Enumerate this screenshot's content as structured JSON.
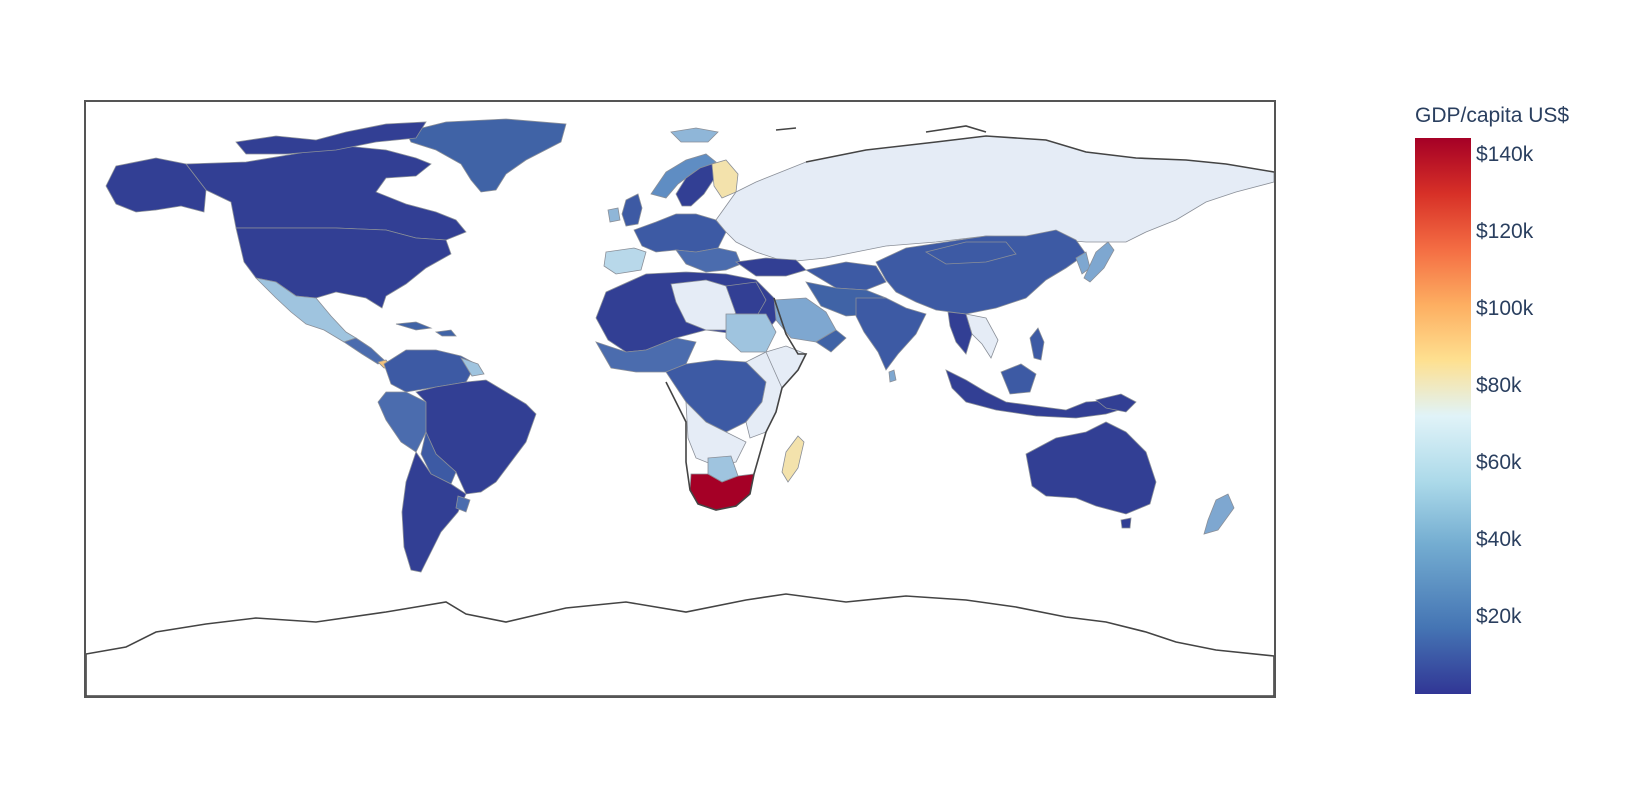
{
  "map": {
    "projection": "equirectangular",
    "land_color": "#e5ecf6",
    "coastline_color": "#444444",
    "frame_color": "#555555",
    "colorscale": "RdYlBu (reversed)",
    "colorscale_stops": [
      "#313695",
      "#4575b4",
      "#74add1",
      "#abd9e9",
      "#e0f3f8",
      "#fee090",
      "#fdae61",
      "#f46d43",
      "#d73027",
      "#a50026"
    ],
    "highlighted_regions": [
      {
        "region": "South Africa",
        "color": "#a50026"
      },
      {
        "region": "Finland",
        "color": "#fee090"
      },
      {
        "region": "Madagascar",
        "color": "#fee090"
      }
    ]
  },
  "colorbar": {
    "title": "GDP/capita US$",
    "ticks": [
      "$140k",
      "$120k",
      "$100k",
      "$80k",
      "$60k",
      "$40k",
      "$20k"
    ]
  }
}
